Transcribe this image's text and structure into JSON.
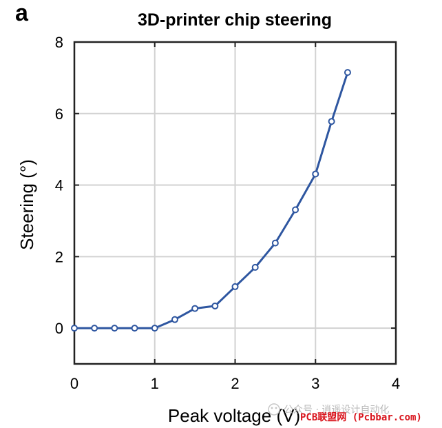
{
  "panel_label": "a",
  "watermark": {
    "wechat_text": "公众号 · 逍遥设计自动化",
    "site_text": "PCB联盟网 (Pcbbar.com)"
  },
  "chart_data": {
    "type": "line",
    "title": "3D-printer chip steering",
    "xlabel": "Peak voltage (V)",
    "ylabel": "Steering (°)",
    "xlim": [
      0,
      4
    ],
    "ylim": [
      -1,
      8
    ],
    "xticks": [
      0,
      1,
      2,
      3,
      4
    ],
    "yticks": [
      0,
      2,
      4,
      6,
      8
    ],
    "grid": true,
    "line_color": "#2e56a0",
    "series": [
      {
        "x": [
          0,
          0.25,
          0.5,
          0.75,
          1.0,
          1.25,
          1.5,
          1.75,
          2.0,
          2.25,
          2.5,
          2.75,
          3.0,
          3.2,
          3.4
        ],
        "y": [
          0,
          0,
          0,
          0,
          0,
          0.24,
          0.55,
          0.62,
          1.16,
          1.7,
          2.38,
          3.31,
          4.31,
          5.78,
          7.15
        ]
      }
    ]
  }
}
